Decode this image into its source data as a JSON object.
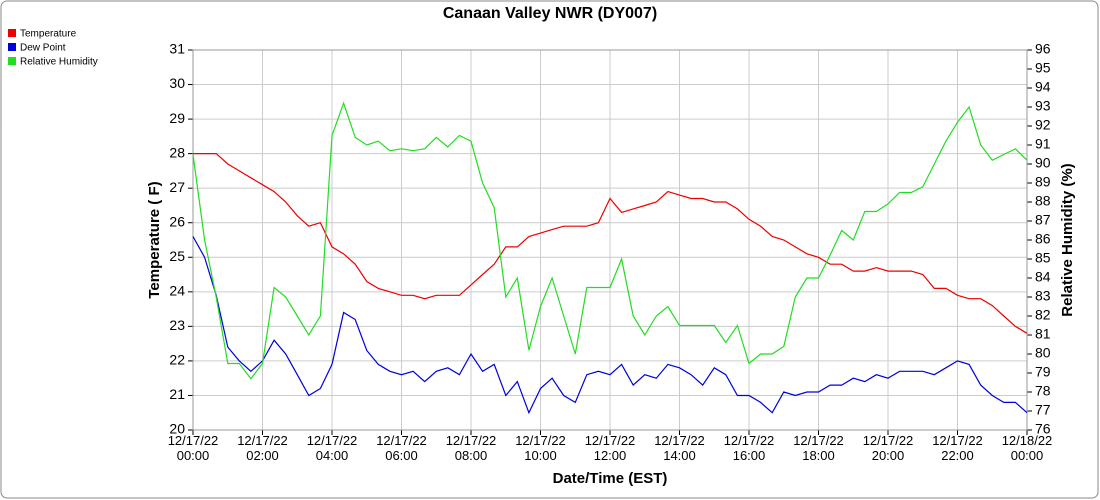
{
  "chart_data": {
    "type": "line",
    "title": "Canaan Valley NWR (DY007)",
    "xlabel": "Date/Time (EST)",
    "ylabel": "Temperature ( F)",
    "y2label": "Relative Humidity (%)",
    "x": [
      "12/17/22 00:00",
      "12/17/22 00:20",
      "12/17/22 00:40",
      "12/17/22 01:00",
      "12/17/22 01:20",
      "12/17/22 01:40",
      "12/17/22 02:00",
      "12/17/22 02:20",
      "12/17/22 02:40",
      "12/17/22 03:00",
      "12/17/22 03:20",
      "12/17/22 03:40",
      "12/17/22 04:00",
      "12/17/22 04:20",
      "12/17/22 04:40",
      "12/17/22 05:00",
      "12/17/22 05:20",
      "12/17/22 05:40",
      "12/17/22 06:00",
      "12/17/22 06:20",
      "12/17/22 06:40",
      "12/17/22 07:00",
      "12/17/22 07:20",
      "12/17/22 07:40",
      "12/17/22 08:00",
      "12/17/22 08:20",
      "12/17/22 08:40",
      "12/17/22 09:00",
      "12/17/22 09:20",
      "12/17/22 09:40",
      "12/17/22 10:00",
      "12/17/22 10:20",
      "12/17/22 10:40",
      "12/17/22 11:00",
      "12/17/22 11:20",
      "12/17/22 11:40",
      "12/17/22 12:00",
      "12/17/22 12:20",
      "12/17/22 12:40",
      "12/17/22 13:00",
      "12/17/22 13:20",
      "12/17/22 13:40",
      "12/17/22 14:00",
      "12/17/22 14:20",
      "12/17/22 14:40",
      "12/17/22 15:00",
      "12/17/22 15:20",
      "12/17/22 15:40",
      "12/17/22 16:00",
      "12/17/22 16:20",
      "12/17/22 16:40",
      "12/17/22 17:00",
      "12/17/22 17:20",
      "12/17/22 17:40",
      "12/17/22 18:00",
      "12/17/22 18:20",
      "12/17/22 18:40",
      "12/17/22 19:00",
      "12/17/22 19:20",
      "12/17/22 19:40",
      "12/17/22 20:00",
      "12/17/22 20:20",
      "12/17/22 20:40",
      "12/17/22 21:00",
      "12/17/22 21:20",
      "12/17/22 21:40",
      "12/17/22 22:00",
      "12/17/22 22:20",
      "12/17/22 22:40",
      "12/17/22 23:00",
      "12/17/22 23:20",
      "12/17/22 23:40",
      "12/18/22 00:00"
    ],
    "series": [
      {
        "name": "Temperature",
        "color": "#ee0000",
        "values": [
          28.0,
          28.0,
          28.0,
          27.7,
          27.5,
          27.3,
          27.1,
          26.9,
          26.6,
          26.2,
          25.9,
          26.0,
          25.3,
          25.1,
          24.8,
          24.3,
          24.1,
          24.0,
          23.9,
          23.9,
          23.8,
          23.9,
          23.9,
          23.9,
          24.2,
          24.5,
          24.8,
          25.3,
          25.3,
          25.6,
          25.7,
          25.8,
          25.9,
          25.9,
          25.9,
          26.0,
          26.7,
          26.3,
          26.4,
          26.5,
          26.6,
          26.9,
          26.8,
          26.7,
          26.7,
          26.6,
          26.6,
          26.4,
          26.1,
          25.9,
          25.6,
          25.5,
          25.3,
          25.1,
          25.0,
          24.8,
          24.8,
          24.6,
          24.6,
          24.7,
          24.6,
          24.6,
          24.6,
          24.5,
          24.1,
          24.1,
          23.9,
          23.8,
          23.8,
          23.6,
          23.3,
          23.0,
          22.8
        ]
      },
      {
        "name": "Dew Point",
        "color": "#0000dd",
        "values": [
          25.6,
          25.0,
          23.9,
          22.4,
          22.0,
          21.7,
          22.0,
          22.6,
          22.2,
          21.6,
          21.0,
          21.2,
          21.9,
          23.4,
          23.2,
          22.3,
          21.9,
          21.7,
          21.6,
          21.7,
          21.4,
          21.7,
          21.8,
          21.6,
          22.2,
          21.7,
          21.9,
          21.0,
          21.4,
          20.5,
          21.2,
          21.5,
          21.0,
          20.8,
          21.6,
          21.7,
          21.6,
          21.9,
          21.3,
          21.6,
          21.5,
          21.9,
          21.8,
          21.6,
          21.3,
          21.8,
          21.6,
          21.0,
          21.0,
          20.8,
          20.5,
          21.1,
          21.0,
          21.1,
          21.1,
          21.3,
          21.3,
          21.5,
          21.4,
          21.6,
          21.5,
          21.7,
          21.7,
          21.7,
          21.6,
          21.8,
          22.0,
          21.9,
          21.3,
          21.0,
          20.8,
          20.8,
          20.5
        ]
      },
      {
        "name": "Relative Humidity",
        "color": "#22dd22",
        "axis": "y2",
        "values": [
          90.5,
          86,
          83,
          79.5,
          79.5,
          78.7,
          79.5,
          83.5,
          83,
          82,
          81,
          82,
          91.5,
          93.2,
          91.4,
          91,
          91.2,
          90.7,
          90.8,
          90.7,
          90.8,
          91.4,
          90.9,
          91.5,
          91.2,
          89,
          87.7,
          83,
          84,
          80.2,
          82.5,
          84,
          82,
          80,
          83.5,
          83.5,
          83.5,
          85,
          82,
          81,
          82,
          82.5,
          81.5,
          81.5,
          81.5,
          81.5,
          80.6,
          81.5,
          79.5,
          80,
          80,
          80.4,
          83,
          84,
          84,
          85.2,
          86.5,
          86,
          87.5,
          87.5,
          87.9,
          88.5,
          88.5,
          88.8,
          90,
          91.2,
          92.2,
          93,
          91,
          90.2,
          90.5,
          90.8,
          90.2
        ]
      }
    ],
    "xlim": [
      "12/17/22 00:00",
      "12/18/22 00:00"
    ],
    "xticks": [
      "12/17/22 00:00",
      "12/17/22 02:00",
      "12/17/22 04:00",
      "12/17/22 06:00",
      "12/17/22 08:00",
      "12/17/22 10:00",
      "12/17/22 12:00",
      "12/17/22 14:00",
      "12/17/22 16:00",
      "12/17/22 18:00",
      "12/17/22 20:00",
      "12/17/22 22:00",
      "12/18/22 00:00"
    ],
    "ylim": [
      20,
      31
    ],
    "yticks": [
      20,
      21,
      22,
      23,
      24,
      25,
      26,
      27,
      28,
      29,
      30,
      31
    ],
    "y2lim": [
      76,
      96
    ],
    "y2ticks": [
      76,
      77,
      78,
      79,
      80,
      81,
      82,
      83,
      84,
      85,
      86,
      87,
      88,
      89,
      90,
      91,
      92,
      93,
      94,
      95,
      96
    ],
    "grid": true
  }
}
